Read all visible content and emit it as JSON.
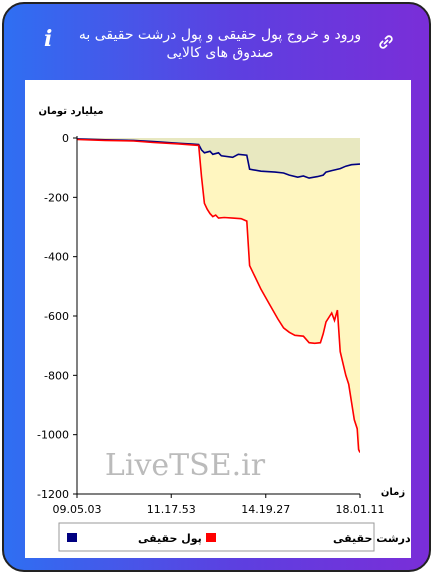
{
  "header": {
    "title": "ورود و خروج پول حقیقی و پول درشت حقیقی به صندوق های کالایی"
  },
  "icons": {
    "info": "info-icon",
    "link": "link-icon"
  },
  "chart_data": {
    "type": "area",
    "ylabel": "میلیارد تومان",
    "xlabel": "زمان",
    "watermark": "LiveTSE.ir",
    "ylim": [
      -1200,
      0
    ],
    "yticks": [
      0,
      -200,
      -400,
      -600,
      -800,
      -1000,
      -1200
    ],
    "xlim": [
      0,
      100
    ],
    "xticks": [
      {
        "pos": 0,
        "label": "09.05.03"
      },
      {
        "pos": 33.3,
        "label": "11.17.53"
      },
      {
        "pos": 66.7,
        "label": "14.19.27"
      },
      {
        "pos": 100,
        "label": "18.01.11"
      }
    ],
    "grid": false,
    "legend_position": "bottom",
    "series": [
      {
        "name": "پول حقیقی",
        "color": "#000080",
        "points": [
          [
            0,
            -3
          ],
          [
            10,
            -6
          ],
          [
            20,
            -8
          ],
          [
            27,
            -12
          ],
          [
            36,
            -18
          ],
          [
            40,
            -20
          ],
          [
            43,
            -22
          ],
          [
            44,
            -40
          ],
          [
            45,
            -50
          ],
          [
            47,
            -45
          ],
          [
            48,
            -55
          ],
          [
            50,
            -50
          ],
          [
            51,
            -60
          ],
          [
            55,
            -65
          ],
          [
            57,
            -55
          ],
          [
            60,
            -58
          ],
          [
            61,
            -105
          ],
          [
            65,
            -112
          ],
          [
            70,
            -115
          ],
          [
            73,
            -118
          ],
          [
            75,
            -125
          ],
          [
            78,
            -132
          ],
          [
            80,
            -128
          ],
          [
            82,
            -135
          ],
          [
            85,
            -130
          ],
          [
            87,
            -125
          ],
          [
            88,
            -115
          ],
          [
            90,
            -110
          ],
          [
            93,
            -103
          ],
          [
            95,
            -95
          ],
          [
            97,
            -90
          ],
          [
            100,
            -88
          ]
        ],
        "fill_color": "#e8e8c0"
      },
      {
        "name": "پول درشت حقیقی",
        "color": "#ff0000",
        "points": [
          [
            0,
            -5
          ],
          [
            10,
            -8
          ],
          [
            20,
            -10
          ],
          [
            27,
            -15
          ],
          [
            36,
            -20
          ],
          [
            43,
            -25
          ],
          [
            44,
            -130
          ],
          [
            45,
            -220
          ],
          [
            46,
            -240
          ],
          [
            47,
            -255
          ],
          [
            48,
            -265
          ],
          [
            49,
            -260
          ],
          [
            50,
            -270
          ],
          [
            52,
            -268
          ],
          [
            55,
            -270
          ],
          [
            58,
            -272
          ],
          [
            60,
            -280
          ],
          [
            61,
            -430
          ],
          [
            63,
            -470
          ],
          [
            65,
            -510
          ],
          [
            68,
            -560
          ],
          [
            71,
            -610
          ],
          [
            73,
            -640
          ],
          [
            75,
            -655
          ],
          [
            77,
            -665
          ],
          [
            80,
            -668
          ],
          [
            82,
            -690
          ],
          [
            84,
            -692
          ],
          [
            86,
            -690
          ],
          [
            87,
            -660
          ],
          [
            88,
            -620
          ],
          [
            90,
            -590
          ],
          [
            91,
            -615
          ],
          [
            92,
            -580
          ],
          [
            93,
            -720
          ],
          [
            95,
            -800
          ],
          [
            96,
            -830
          ],
          [
            97,
            -890
          ],
          [
            98,
            -950
          ],
          [
            99,
            -980
          ],
          [
            99.5,
            -1050
          ],
          [
            100,
            -1060
          ]
        ],
        "fill_color": "#fff6c0"
      }
    ]
  }
}
